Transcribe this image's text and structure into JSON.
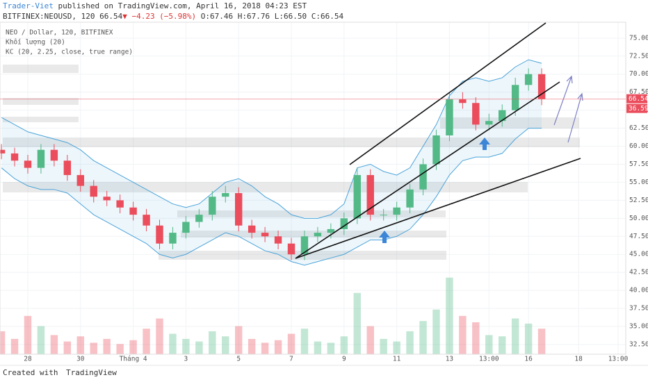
{
  "chart_data": {
    "type": "candlestick",
    "author": "Trader-Viet",
    "published": "published on TradingView.com, April 16, 2018 04:23 EST",
    "symbol": "BITFINEX:NEOUSD, 120",
    "last": "66.54",
    "change": "▼ −4.23 (−5.98%)",
    "ohlc_text": "O:67.46 H:67.76 L:66.50 C:66.54",
    "legend_lines": [
      "NEO / Dollar, 120, BITFINEX",
      "Khối lượng (20)",
      "KC (20, 2.25, close, true range)"
    ],
    "footer": "Created with",
    "brand": "TradingView",
    "last_price": {
      "value": 66.54,
      "label": "66.54"
    },
    "volume_tag": "36.59",
    "up_color": "#53b987",
    "down_color": "#eb4d5c",
    "band_color": "#4aa3d9",
    "x": [
      -1,
      -0.5,
      0,
      0.5,
      1,
      1.5,
      2,
      2.5,
      3,
      3.5,
      4,
      4.5,
      5,
      5.5,
      6,
      6.5,
      7,
      7.5,
      8,
      8.5,
      9,
      9.5,
      10,
      10.5,
      11,
      11.5,
      12,
      12.5,
      13,
      13.5,
      14,
      14.5,
      15,
      15.5,
      16,
      16.5,
      17,
      17.5,
      18,
      18.5,
      19,
      19.5
    ],
    "open": [
      59.5,
      59,
      58,
      57,
      59.5,
      58,
      56,
      54.5,
      53,
      52.5,
      51.5,
      50.5,
      49,
      46.5,
      48,
      49.5,
      50.5,
      53,
      53.5,
      49,
      48,
      47.5,
      46.5,
      45,
      47.5,
      48,
      48.5,
      50,
      56,
      50.5,
      50.5,
      51.5,
      54,
      57.5,
      61.5,
      66.5,
      66,
      63,
      63.5,
      65,
      68.5,
      70
    ],
    "high": [
      60.3,
      59.8,
      58.8,
      60.3,
      60.3,
      58.8,
      56.8,
      55.3,
      53.8,
      53.3,
      52.3,
      51.3,
      49.8,
      48.8,
      50.3,
      51.3,
      53.8,
      54.5,
      54.3,
      49.8,
      48.8,
      48.3,
      47.3,
      48.3,
      48.8,
      49.3,
      50.8,
      57,
      56.8,
      51.3,
      52.3,
      54.8,
      58.3,
      62.3,
      67.5,
      67.5,
      66.8,
      64.5,
      65.8,
      69.5,
      70.8,
      70.8
    ],
    "low": [
      58.2,
      57.2,
      56.2,
      56.2,
      57.2,
      55.2,
      53.7,
      52.2,
      51.7,
      50.7,
      49.7,
      48.2,
      45.7,
      45.7,
      47.2,
      48.7,
      49.7,
      52.2,
      48.2,
      47.2,
      46.7,
      45.7,
      44.2,
      44.2,
      46.7,
      47.2,
      47.7,
      49.2,
      49.7,
      49.7,
      49.7,
      50.7,
      53.2,
      56.7,
      60.7,
      65.2,
      62.2,
      62.2,
      62.7,
      64.2,
      67.7,
      65.7
    ],
    "close": [
      59,
      58,
      57,
      59.5,
      58,
      56,
      54.5,
      53,
      52.5,
      51.5,
      50.5,
      49,
      46.5,
      48,
      49.5,
      50.5,
      53,
      53.5,
      49,
      48,
      47.5,
      46.5,
      45,
      47.5,
      48,
      48.5,
      50,
      56,
      50.5,
      50.5,
      51.5,
      54,
      57.5,
      61.5,
      66.5,
      66,
      63,
      63.5,
      65,
      68.5,
      70,
      66.54
    ],
    "upper_band": [
      64,
      63,
      62,
      61.5,
      61,
      60.5,
      59.5,
      58,
      57,
      56,
      55,
      54,
      53,
      52,
      51.5,
      52,
      53.5,
      55,
      55.5,
      54.5,
      53,
      52,
      50.5,
      50,
      50,
      50.5,
      52,
      57,
      57.5,
      56.5,
      56,
      57,
      60,
      63,
      67,
      69,
      69.5,
      69,
      69.5,
      71,
      72,
      71.5
    ],
    "lower_band": [
      57,
      55.5,
      54.5,
      54,
      54,
      53.5,
      52,
      50.5,
      49.5,
      48.5,
      47.5,
      46.5,
      45,
      44.5,
      45,
      46,
      47,
      48,
      47.5,
      46.5,
      45.5,
      45,
      44,
      43.5,
      44,
      44.5,
      45,
      46,
      47,
      47,
      47.5,
      48.5,
      50.5,
      53,
      56,
      58,
      58.5,
      58.5,
      59,
      61,
      62.5,
      62.5
    ],
    "volume": [
      18,
      12,
      30,
      22,
      15,
      10,
      14,
      9,
      12,
      8,
      11,
      20,
      28,
      16,
      12,
      10,
      18,
      14,
      22,
      12,
      9,
      11,
      16,
      20,
      10,
      9,
      14,
      48,
      22,
      12,
      10,
      18,
      26,
      35,
      60,
      30,
      25,
      15,
      14,
      28,
      24,
      20
    ],
    "y2lim": [
      0,
      260
    ],
    "xlim": [
      -1.055,
      22.69
    ],
    "xticks": [
      {
        "value": 0,
        "label": "28"
      },
      {
        "value": 2,
        "label": "30"
      },
      {
        "value": 4,
        "label": "Tháng 4"
      },
      {
        "value": 6,
        "label": "3"
      },
      {
        "value": 8,
        "label": "5"
      },
      {
        "value": 10,
        "label": "7"
      },
      {
        "value": 12,
        "label": "9"
      },
      {
        "value": 14,
        "label": "11"
      },
      {
        "value": 16,
        "label": "13"
      },
      {
        "value": 17.5,
        "label": "13:00"
      },
      {
        "value": 19,
        "label": "16"
      },
      {
        "value": 20.9,
        "label": "18"
      },
      {
        "value": 22.4,
        "label": "13:00"
      }
    ],
    "ylim": [
      31.15,
      77.2
    ],
    "yticks": [
      {
        "value": 32.5,
        "label": "32.50"
      },
      {
        "value": 35,
        "label": "35.00"
      },
      {
        "value": 37.5,
        "label": "37.50"
      },
      {
        "value": 40,
        "label": "40.00"
      },
      {
        "value": 42.5,
        "label": "42.50"
      },
      {
        "value": 45,
        "label": "45.00"
      },
      {
        "value": 47.5,
        "label": "47.50"
      },
      {
        "value": 50,
        "label": "50.00"
      },
      {
        "value": 52.5,
        "label": "52.50"
      },
      {
        "value": 55,
        "label": "55.00"
      },
      {
        "value": 57.5,
        "label": "57.50"
      },
      {
        "value": 60,
        "label": "60.00"
      },
      {
        "value": 62.5,
        "label": "62.50"
      },
      {
        "value": 65,
        "label": "65.00"
      },
      {
        "value": 67.5,
        "label": "67.50"
      },
      {
        "value": 70,
        "label": "70.00"
      },
      {
        "value": 72.5,
        "label": "72.50"
      },
      {
        "value": 75,
        "label": "75.00"
      }
    ],
    "grid": true
  }
}
